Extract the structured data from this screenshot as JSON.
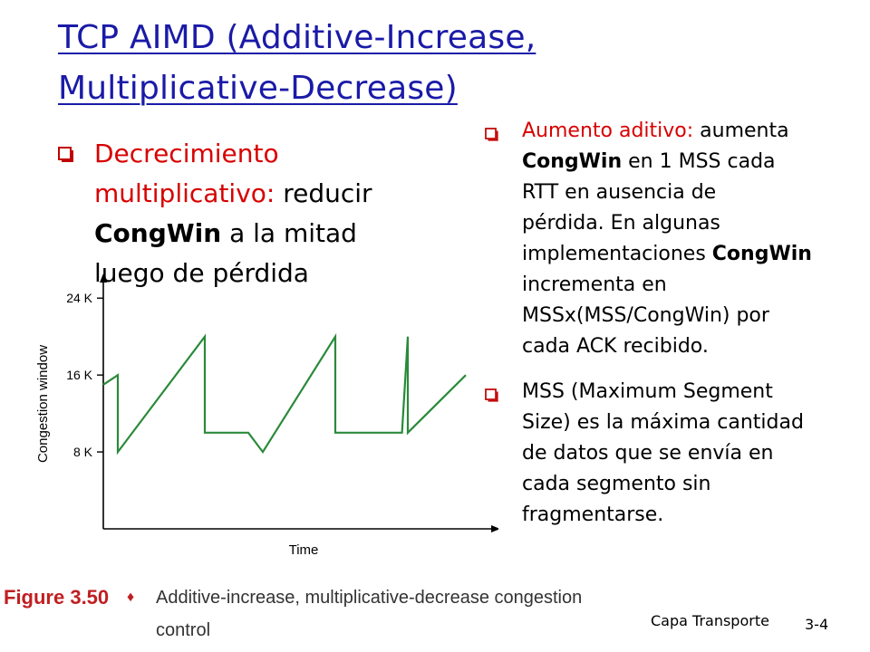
{
  "slide": {
    "title_line1": "TCP AIMD (Additive-Increase,",
    "title_line2": "Multiplicative-Decrease)",
    "left_bullet": {
      "hl_line1": "Decrecimiento",
      "hl_line2": "multiplicativo:",
      "text_line2": " reducir",
      "bold_line3": "CongWin",
      "text_line3": " a la mitad",
      "text_line4": "luego de pérdida"
    },
    "right_bullets": [
      {
        "hl": "Aumento aditivo:",
        "text_a": " aumenta",
        "bold_a": "CongWin",
        "text_b": " en 1 MSS cada",
        "line3": "RTT en ausencia de",
        "line4": "pérdida. En algunas",
        "line5_text": "implementaciones ",
        "line5_bold": "CongWin",
        "line6": "incrementa en",
        "line7": "MSSx(MSS/CongWin) por",
        "line8": "cada ACK recibido."
      },
      {
        "line1": "MSS (Maximum Segment",
        "line2": "Size) es la máxima cantidad",
        "line3": "de datos que se envía en",
        "line4": "cada segmento sin",
        "line5": "fragmentarse."
      }
    ],
    "footer_label": "Capa Transporte",
    "page_number": "3-4"
  },
  "figure_caption": {
    "number": "Figure 3.50",
    "separator": "♦",
    "text": "Additive-increase, multiplicative-decrease congestion control"
  },
  "chart_data": {
    "type": "line",
    "xlabel": "Time",
    "ylabel": "Congestion window",
    "yticks": [
      "8 K",
      "16 K",
      "24 K"
    ],
    "ytick_values": [
      8,
      16,
      24
    ],
    "ylim": [
      0,
      26
    ],
    "xlim": [
      0,
      26
    ],
    "grid": false,
    "series": [
      {
        "color": "#2a8a3a",
        "points": [
          [
            0,
            15
          ],
          [
            1,
            16
          ],
          [
            1,
            8
          ],
          [
            7,
            20
          ],
          [
            7,
            10
          ],
          [
            10,
            10
          ],
          [
            11,
            8
          ],
          [
            16,
            20
          ],
          [
            16,
            10
          ],
          [
            20.6,
            10
          ],
          [
            21,
            20
          ],
          [
            21,
            10
          ],
          [
            25,
            16
          ]
        ]
      }
    ],
    "colors": {
      "axis": "#000000",
      "line": "#2a8a3a"
    }
  },
  "theme": {
    "title_color": "#1a1aa8",
    "highlight_color": "#d80000",
    "bullet_color": "#c00000"
  }
}
